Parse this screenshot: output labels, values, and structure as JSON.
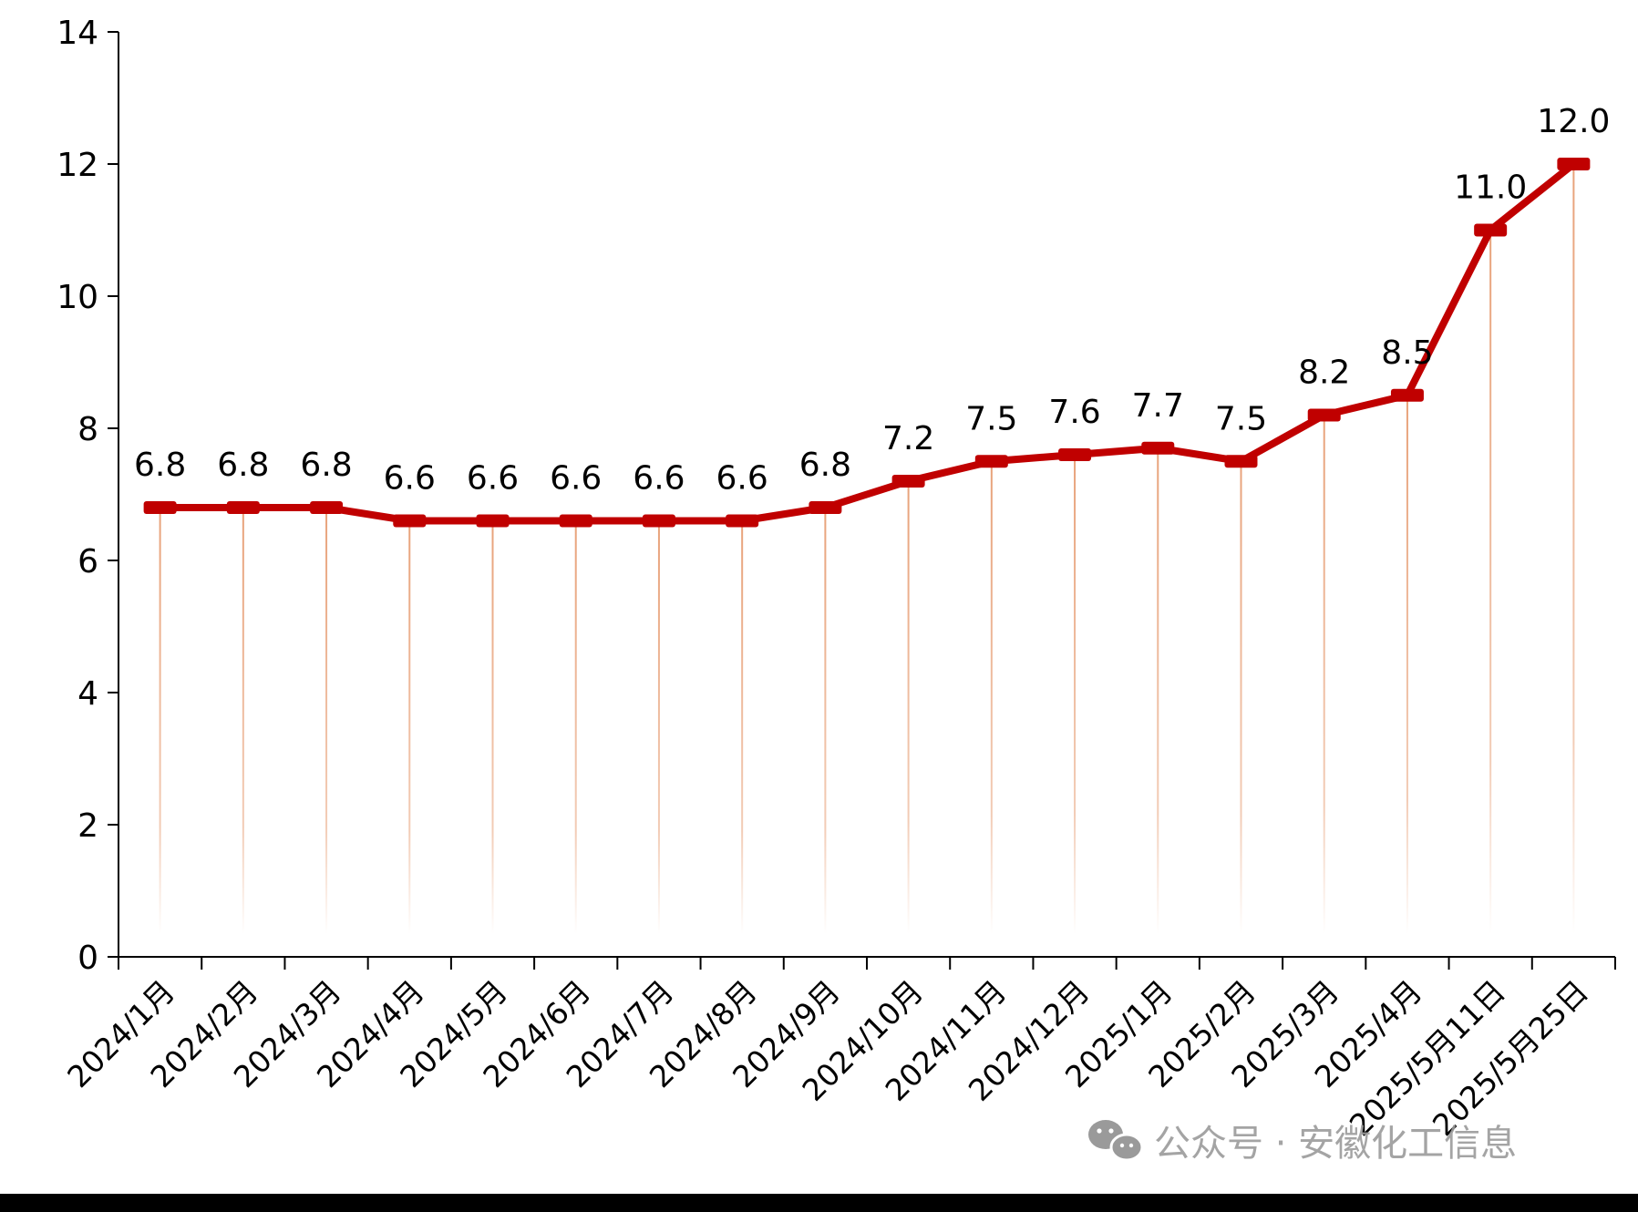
{
  "chart_data": {
    "type": "line",
    "title": "",
    "xlabel": "",
    "ylabel": "",
    "ylim": [
      0,
      14
    ],
    "yticks": [
      0,
      2,
      4,
      6,
      8,
      10,
      12,
      14
    ],
    "grid": false,
    "legend": "none",
    "categories": [
      "2024/1月",
      "2024/2月",
      "2024/3月",
      "2024/4月",
      "2024/5月",
      "2024/6月",
      "2024/7月",
      "2024/8月",
      "2024/9月",
      "2024/10月",
      "2024/11月",
      "2024/12月",
      "2025/1月",
      "2025/2月",
      "2025/3月",
      "2025/4月",
      "2025/5月11日",
      "2025/5月25日"
    ],
    "series": [
      {
        "values": [
          6.8,
          6.8,
          6.8,
          6.6,
          6.6,
          6.6,
          6.6,
          6.6,
          6.8,
          7.2,
          7.5,
          7.6,
          7.7,
          7.5,
          8.2,
          8.5,
          11.0,
          12.0
        ],
        "labels": [
          "6.8",
          "6.8",
          "6.8",
          "6.6",
          "6.6",
          "6.6",
          "6.6",
          "6.6",
          "6.8",
          "7.2",
          "7.5",
          "7.6",
          "7.7",
          "7.5",
          "8.2",
          "8.5",
          "11.0",
          "12.0"
        ],
        "color": "#c00000"
      }
    ],
    "drop_line_color": "#e8a27a"
  },
  "watermark": {
    "text": "公众号 · 安徽化工信息",
    "icon": "wechat-icon"
  }
}
